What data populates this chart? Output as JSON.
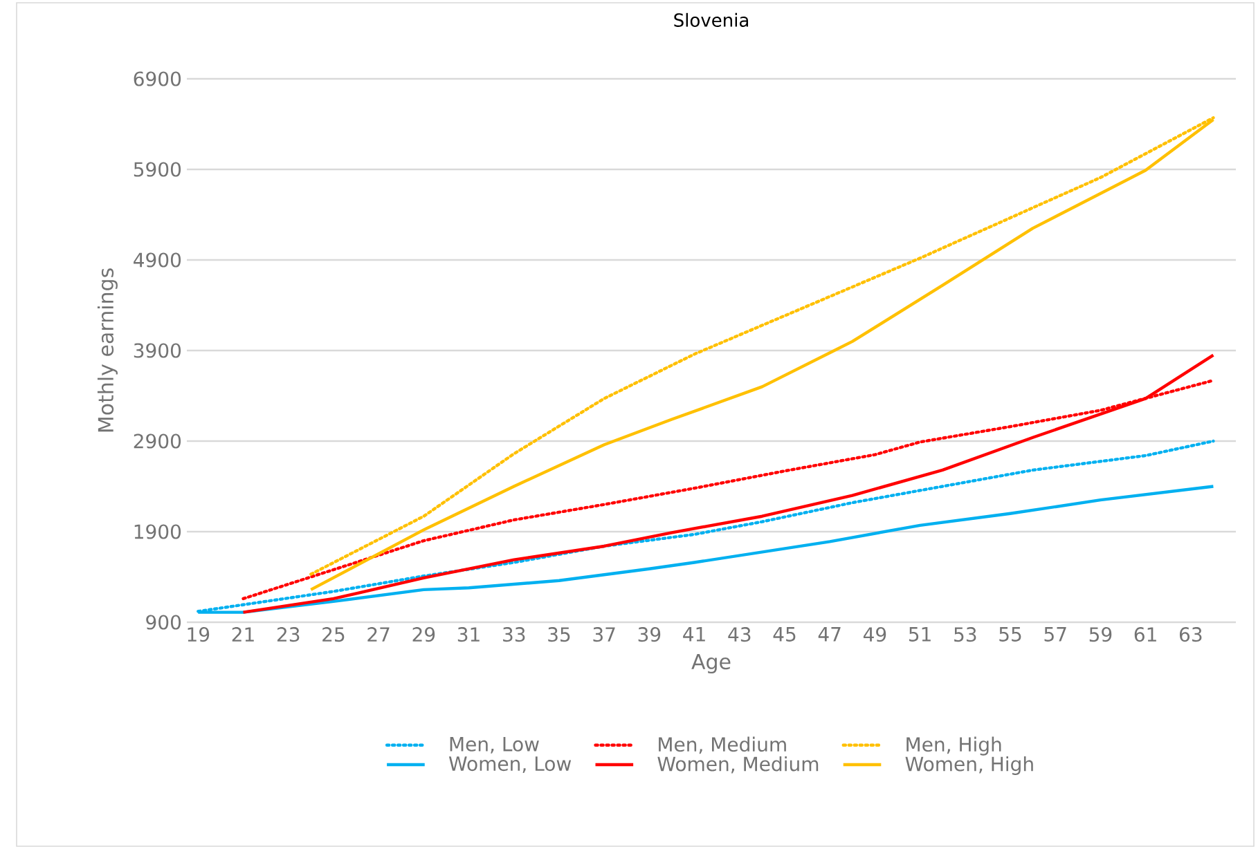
{
  "chart_data": {
    "type": "line",
    "title": "Slovenia",
    "xlabel": "Age",
    "ylabel": "Mothly earnings",
    "xlim": [
      18.5,
      65
    ],
    "xticks": [
      19,
      21,
      23,
      25,
      27,
      29,
      31,
      33,
      35,
      37,
      39,
      41,
      43,
      45,
      47,
      49,
      51,
      53,
      55,
      57,
      59,
      61,
      63
    ],
    "ylim": [
      900,
      6900
    ],
    "yticks": [
      900,
      1900,
      2900,
      3900,
      4900,
      5900,
      6900
    ],
    "grid": "y",
    "legend": "bottom",
    "series": [
      {
        "name": "Men, Low",
        "color": "#00b0f0",
        "line_style": "dotted",
        "x": [
          19,
          25,
          29,
          33,
          37,
          41,
          44,
          48,
          52,
          56,
          61,
          64
        ],
        "values": [
          1020,
          1240,
          1410,
          1560,
          1740,
          1870,
          2010,
          2220,
          2400,
          2580,
          2740,
          2900
        ]
      },
      {
        "name": "Men, Medium",
        "color": "#ff0000",
        "line_style": "dotted",
        "x": [
          21,
          25,
          29,
          33,
          37,
          41,
          45,
          49,
          51,
          55,
          59,
          64
        ],
        "values": [
          1160,
          1480,
          1800,
          2030,
          2200,
          2380,
          2570,
          2750,
          2890,
          3060,
          3240,
          3570
        ]
      },
      {
        "name": "Men, High",
        "color": "#ffc000",
        "line_style": "dotted",
        "x": [
          24,
          29,
          33,
          37,
          41,
          51,
          59,
          64
        ],
        "values": [
          1430,
          2070,
          2760,
          3370,
          3860,
          4920,
          5810,
          6470
        ]
      },
      {
        "name": "Women, Low",
        "color": "#00b0f0",
        "line_style": "solid",
        "x": [
          19,
          21,
          25,
          29,
          31,
          35,
          39,
          41,
          47,
          51,
          55,
          59,
          64
        ],
        "values": [
          1010,
          1010,
          1130,
          1260,
          1280,
          1360,
          1490,
          1560,
          1790,
          1970,
          2100,
          2250,
          2400
        ]
      },
      {
        "name": "Women, Medium",
        "color": "#ff0000",
        "line_style": "solid",
        "x": [
          21,
          25,
          29,
          33,
          37,
          40,
          44,
          48,
          52,
          56,
          61,
          64
        ],
        "values": [
          1010,
          1160,
          1390,
          1590,
          1740,
          1890,
          2070,
          2300,
          2580,
          2940,
          3370,
          3850
        ]
      },
      {
        "name": "Women, High",
        "color": "#ffc000",
        "line_style": "solid",
        "x": [
          24,
          29,
          33,
          37,
          40,
          44,
          48,
          52,
          56,
          61,
          64
        ],
        "values": [
          1260,
          1920,
          2400,
          2860,
          3140,
          3500,
          4000,
          4620,
          5250,
          5890,
          6450
        ]
      }
    ]
  }
}
